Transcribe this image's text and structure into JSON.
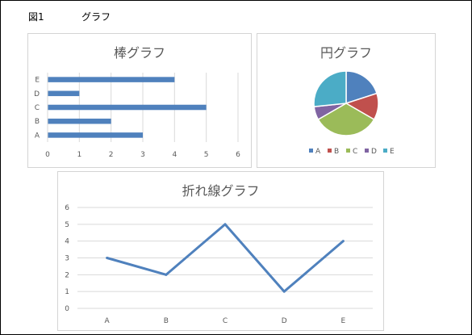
{
  "figure": {
    "label": "図1",
    "caption": "グラフ"
  },
  "colors": {
    "bar": "#4f81bd",
    "line": "#4f81bd",
    "pie": [
      "#4f81bd",
      "#c0504d",
      "#9bbb59",
      "#8064a2",
      "#4bacc6"
    ],
    "grid": "#d9d9d9",
    "text": "#595959"
  },
  "chart_data": [
    {
      "type": "bar",
      "orientation": "horizontal",
      "title": "棒グラフ",
      "categories": [
        "A",
        "B",
        "C",
        "D",
        "E"
      ],
      "values": [
        3,
        2,
        5,
        1,
        4
      ],
      "xlim": [
        0,
        6
      ],
      "xticks": [
        "0",
        "1",
        "2",
        "3",
        "4",
        "5",
        "6"
      ],
      "grid": true,
      "legend": "none"
    },
    {
      "type": "pie",
      "title": "円グラフ",
      "categories": [
        "A",
        "B",
        "C",
        "D",
        "E"
      ],
      "values": [
        3,
        2,
        5,
        1,
        4
      ],
      "legend": "bottom"
    },
    {
      "type": "line",
      "title": "折れ線グラフ",
      "categories": [
        "A",
        "B",
        "C",
        "D",
        "E"
      ],
      "values": [
        3,
        2,
        5,
        1,
        4
      ],
      "ylim": [
        0,
        6
      ],
      "yticks": [
        "0",
        "1",
        "2",
        "3",
        "4",
        "5",
        "6"
      ],
      "grid": true,
      "legend": "none"
    }
  ]
}
